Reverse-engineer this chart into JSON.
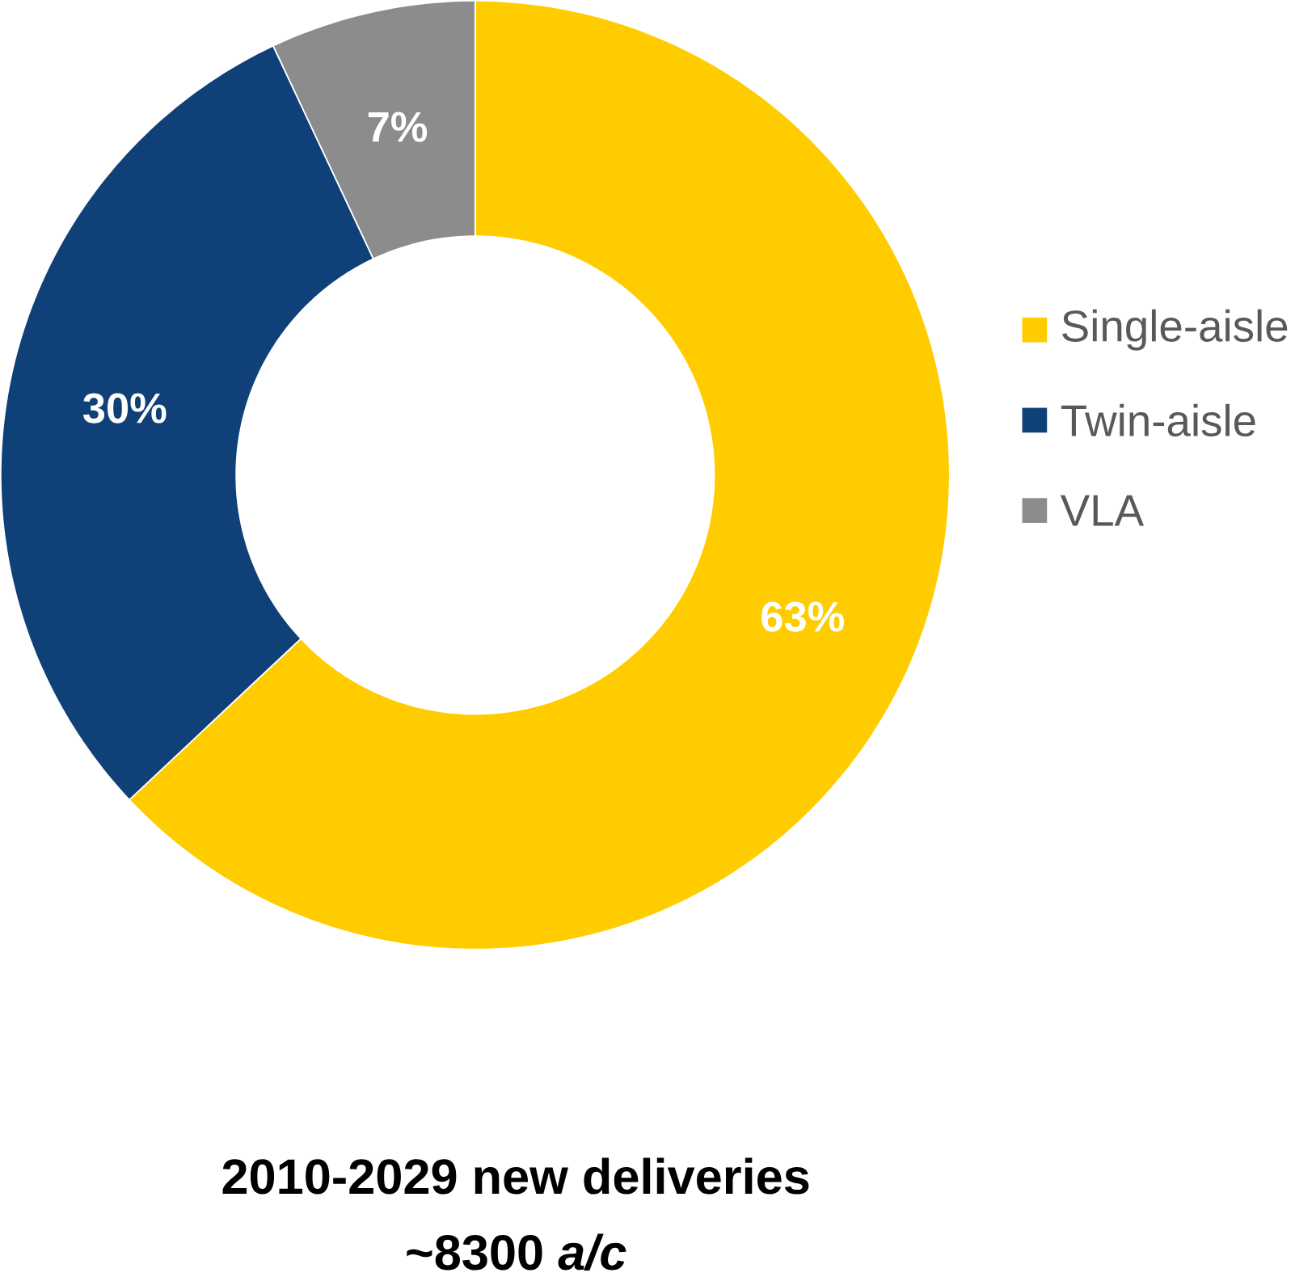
{
  "chart_data": {
    "type": "donut",
    "title": "2010-2029 new deliveries",
    "subtitle": "~8300 *a/c*",
    "categories": [
      "Single-aisle",
      "Twin-aisle",
      "VLA"
    ],
    "values": [
      63,
      30,
      7
    ],
    "colors": [
      "#ffcc00",
      "#0f4178",
      "#8c8c8c"
    ],
    "value_labels": [
      "63%",
      "30%",
      "7%"
    ],
    "legend": "right"
  }
}
